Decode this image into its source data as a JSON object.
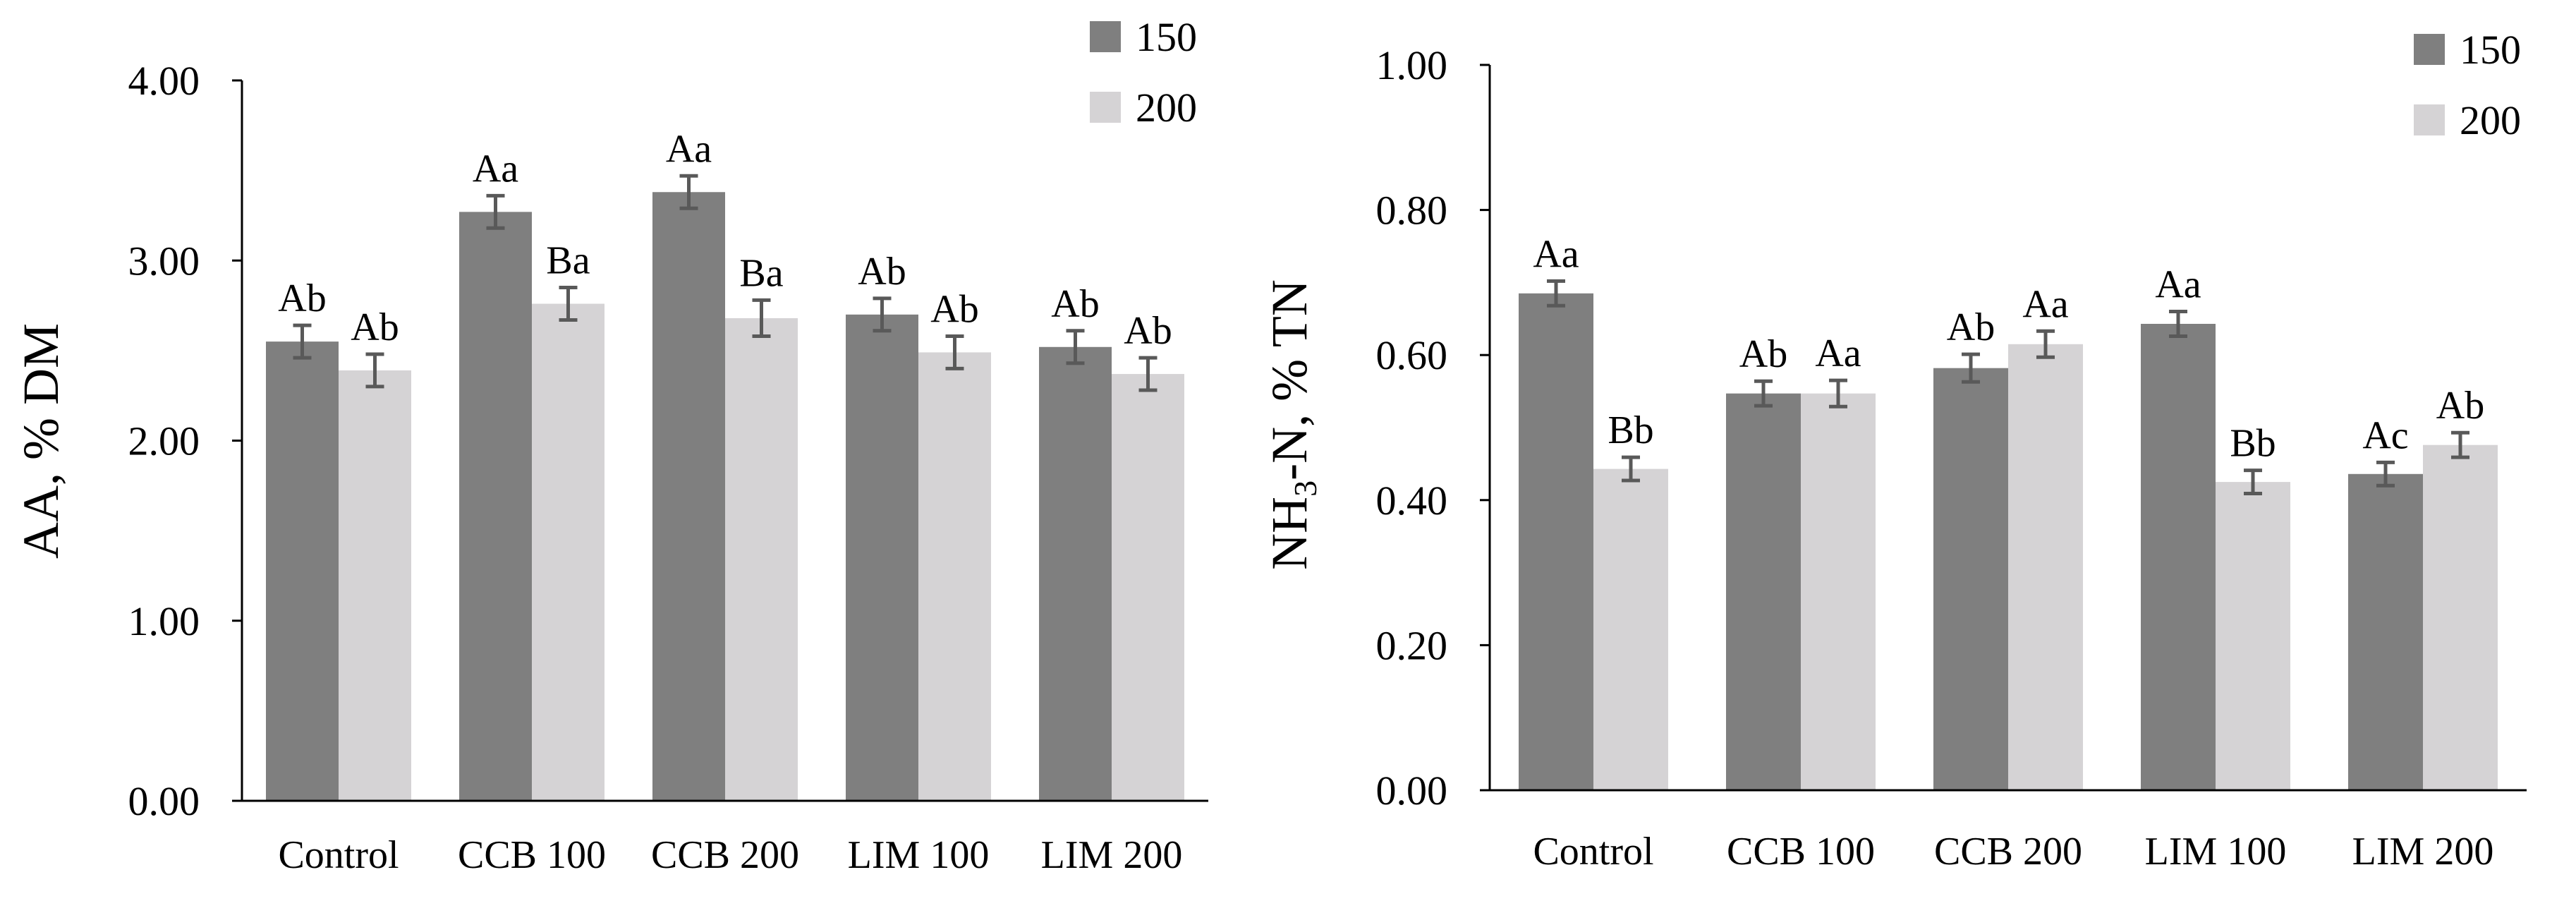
{
  "colors": {
    "s150": "#7f7f7f",
    "s200": "#d5d3d5"
  },
  "chart_data": [
    {
      "type": "bar",
      "title": "",
      "xlabel": "",
      "ylabel": "AA, % DM",
      "ylim": [
        0,
        4
      ],
      "yticks": [
        "0.00",
        "1.00",
        "2.00",
        "3.00",
        "4.00"
      ],
      "categories": [
        "Control",
        "CCB 100",
        "CCB 200",
        "LIM 100",
        "LIM 200"
      ],
      "legend_position": "top-right",
      "series": [
        {
          "name": "150",
          "values": [
            2.55,
            3.27,
            3.38,
            2.7,
            2.52
          ],
          "errors": [
            0.09,
            0.09,
            0.09,
            0.09,
            0.09
          ],
          "labels": [
            "Ab",
            "Aa",
            "Aa",
            "Ab",
            "Ab"
          ]
        },
        {
          "name": "200",
          "values": [
            2.39,
            2.76,
            2.68,
            2.49,
            2.37
          ],
          "errors": [
            0.09,
            0.09,
            0.1,
            0.09,
            0.09
          ],
          "labels": [
            "Ab",
            "Ba",
            "Ba",
            "Ab",
            "Ab"
          ]
        }
      ]
    },
    {
      "type": "bar",
      "title": "",
      "xlabel": "",
      "ylabel_parts": [
        "NH",
        "3",
        "-N, % TN"
      ],
      "ylim": [
        0,
        1
      ],
      "yticks": [
        "0.00",
        "0.20",
        "0.40",
        "0.60",
        "0.80",
        "1.00"
      ],
      "categories": [
        "Control",
        "CCB 100",
        "CCB 200",
        "LIM 100",
        "LIM 200"
      ],
      "legend_position": "top-right",
      "series": [
        {
          "name": "150",
          "values": [
            0.685,
            0.547,
            0.582,
            0.643,
            0.436
          ],
          "errors": [
            0.017,
            0.017,
            0.019,
            0.017,
            0.016
          ],
          "labels": [
            "Aa",
            "Ab",
            "Ab",
            "Aa",
            "Ac"
          ]
        },
        {
          "name": "200",
          "values": [
            0.443,
            0.547,
            0.615,
            0.425,
            0.476
          ],
          "errors": [
            0.016,
            0.018,
            0.018,
            0.016,
            0.017
          ],
          "labels": [
            "Bb",
            "Aa",
            "Aa",
            "Bb",
            "Ab"
          ]
        }
      ]
    }
  ]
}
